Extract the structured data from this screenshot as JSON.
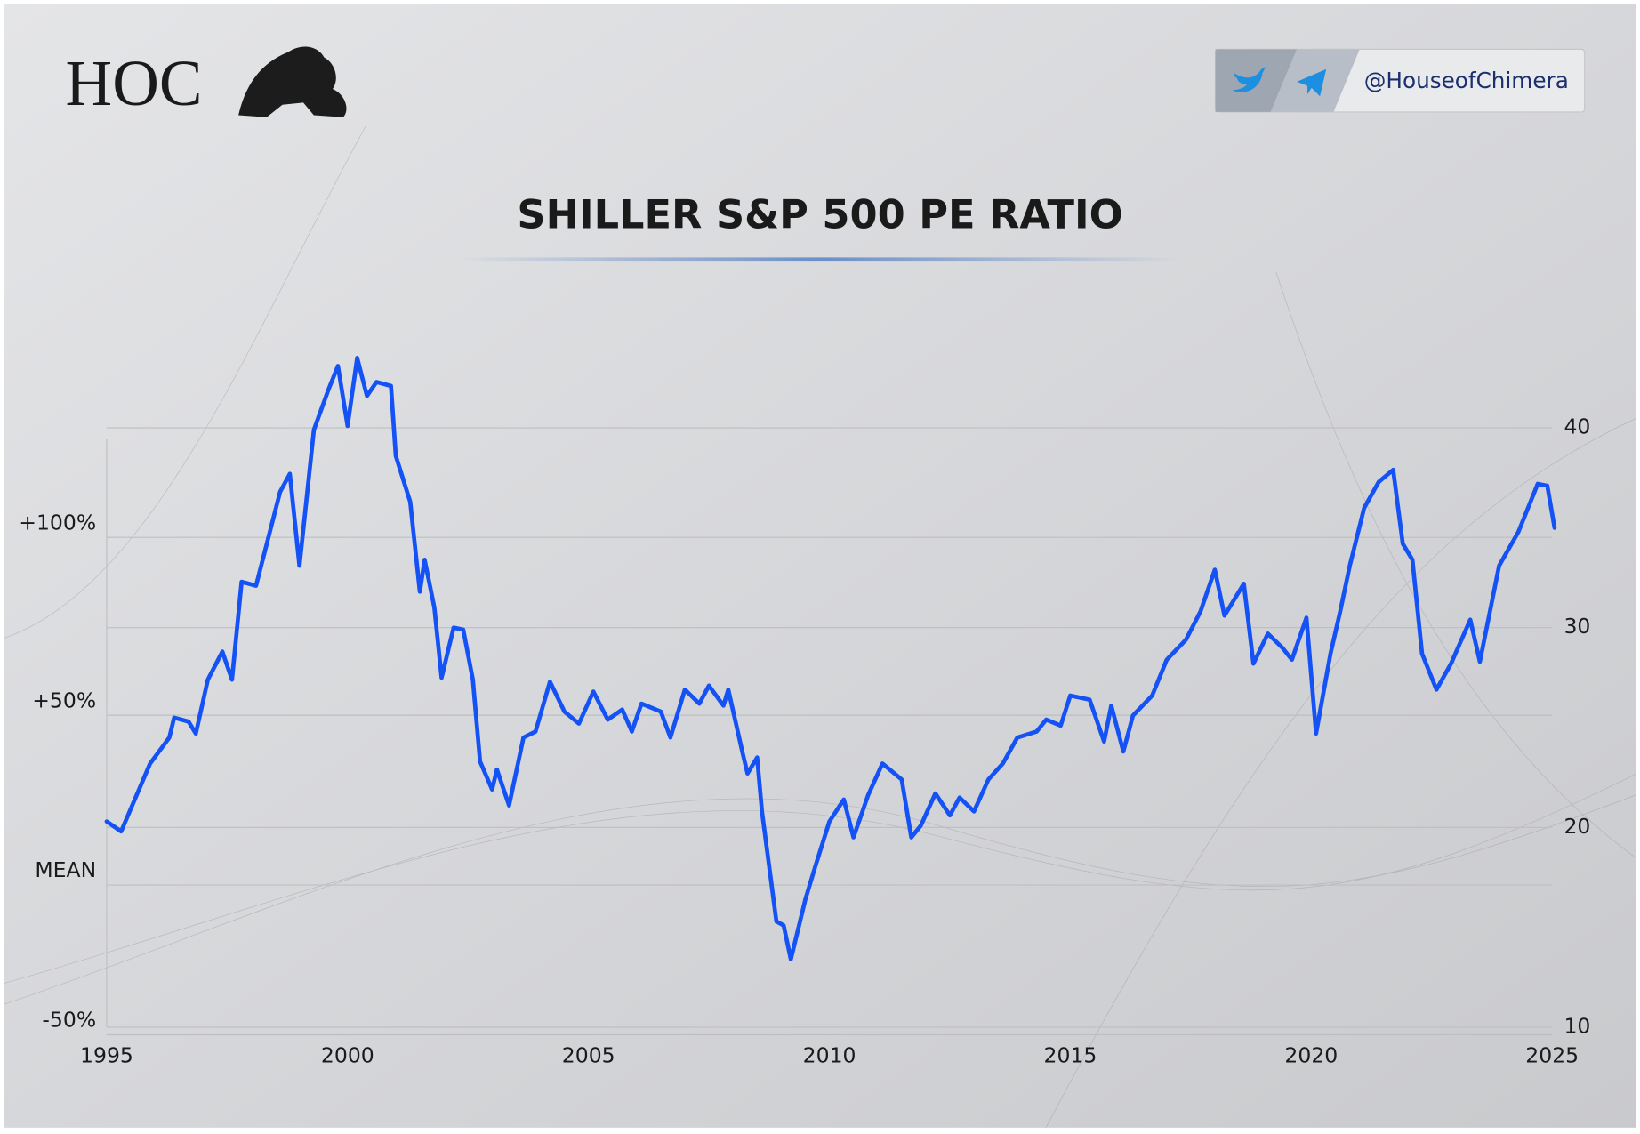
{
  "chart_data": {
    "type": "line",
    "title": "SHILLER S&P 500 PE RATIO",
    "brand": "HOC",
    "handle": "@HouseofChimera",
    "color": "#1452f5",
    "grid": true,
    "xlim": [
      1995,
      2025
    ],
    "xticks": [
      1995,
      2000,
      2005,
      2010,
      2015,
      2020,
      2025
    ],
    "ylim": [
      10,
      40
    ],
    "yticks": [
      10,
      20,
      30,
      40
    ],
    "y2lim": [
      10,
      40
    ],
    "y2ticks": [
      {
        "value": 35.2,
        "label": "+100%"
      },
      {
        "value": 26.3,
        "label": "+50%"
      },
      {
        "value": 17.8,
        "label": "MEAN"
      },
      {
        "value": 10.3,
        "label": "-50%"
      }
    ],
    "x": [
      1995.0,
      1995.3,
      1995.9,
      1996.3,
      1996.4,
      1996.7,
      1996.85,
      1997.1,
      1997.4,
      1997.6,
      1997.8,
      1998.1,
      1998.6,
      1998.8,
      1999.0,
      1999.3,
      1999.6,
      1999.8,
      2000.0,
      2000.2,
      2000.4,
      2000.6,
      2000.9,
      2001.0,
      2001.3,
      2001.5,
      2001.6,
      2001.8,
      2001.95,
      2002.2,
      2002.4,
      2002.6,
      2002.75,
      2003.0,
      2003.1,
      2003.35,
      2003.65,
      2003.9,
      2004.2,
      2004.5,
      2004.8,
      2005.1,
      2005.4,
      2005.7,
      2005.9,
      2006.1,
      2006.5,
      2006.7,
      2007.0,
      2007.3,
      2007.5,
      2007.8,
      2007.9,
      2008.2,
      2008.3,
      2008.5,
      2008.6,
      2008.9,
      2009.05,
      2009.2,
      2009.5,
      2009.7,
      2010.0,
      2010.3,
      2010.5,
      2010.8,
      2011.1,
      2011.5,
      2011.7,
      2011.9,
      2012.2,
      2012.5,
      2012.7,
      2013.0,
      2013.3,
      2013.6,
      2013.9,
      2014.3,
      2014.5,
      2014.8,
      2015.0,
      2015.4,
      2015.7,
      2015.85,
      2016.1,
      2016.3,
      2016.7,
      2017.0,
      2017.4,
      2017.7,
      2018.0,
      2018.2,
      2018.6,
      2018.8,
      2019.1,
      2019.4,
      2019.6,
      2019.9,
      2020.1,
      2020.4,
      2020.6,
      2020.8,
      2021.1,
      2021.4,
      2021.7,
      2021.9,
      2022.1,
      2022.3,
      2022.6,
      2022.9,
      2023.3,
      2023.5,
      2023.9,
      2024.3,
      2024.7,
      2024.9,
      2025.05
    ],
    "values": [
      20.3,
      19.8,
      23.2,
      24.5,
      25.5,
      25.3,
      24.7,
      27.4,
      28.8,
      27.4,
      32.3,
      32.1,
      36.8,
      37.7,
      33.1,
      39.9,
      41.9,
      43.1,
      40.1,
      43.5,
      41.6,
      42.3,
      42.1,
      38.6,
      36.3,
      31.8,
      33.4,
      31.0,
      27.5,
      30.0,
      29.9,
      27.4,
      23.3,
      21.9,
      22.9,
      21.1,
      24.5,
      24.8,
      27.3,
      25.8,
      25.2,
      26.8,
      25.4,
      25.9,
      24.8,
      26.2,
      25.8,
      24.5,
      26.9,
      26.2,
      27.1,
      26.1,
      26.9,
      23.7,
      22.7,
      23.5,
      20.8,
      15.3,
      15.1,
      13.4,
      16.4,
      18.0,
      20.3,
      21.4,
      19.5,
      21.6,
      23.2,
      22.4,
      19.5,
      20.1,
      21.7,
      20.6,
      21.5,
      20.8,
      22.4,
      23.2,
      24.5,
      24.8,
      25.4,
      25.1,
      26.6,
      26.4,
      24.3,
      26.1,
      23.8,
      25.6,
      26.6,
      28.4,
      29.4,
      30.8,
      32.9,
      30.6,
      32.2,
      28.2,
      29.7,
      29.0,
      28.4,
      30.5,
      24.7,
      28.7,
      30.8,
      33.1,
      36.0,
      37.3,
      37.9,
      34.2,
      33.4,
      28.7,
      26.9,
      28.2,
      30.4,
      28.3,
      33.1,
      34.8,
      37.2,
      37.1,
      35.0
    ]
  }
}
